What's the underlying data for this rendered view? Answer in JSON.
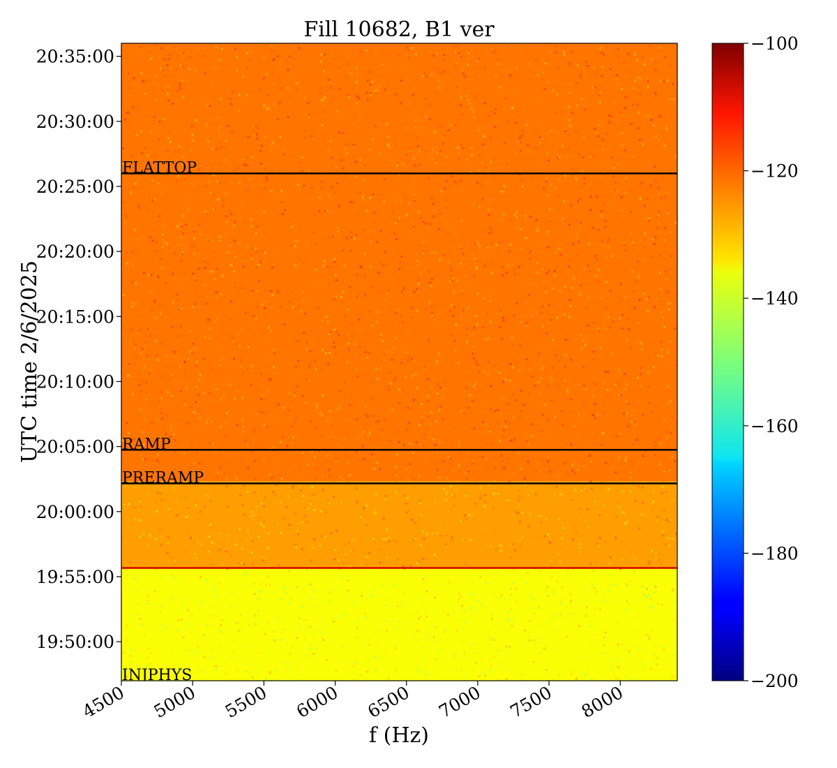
{
  "chart_data": {
    "type": "heatmap",
    "title": "Fill 10682, B1 ver",
    "xlabel": "f (Hz)",
    "ylabel": "UTC time 2/6/2025",
    "xlim": [
      4500,
      8400
    ],
    "x_ticks": [
      4500,
      5000,
      5500,
      6000,
      6500,
      7000,
      7500,
      8000
    ],
    "x_tick_labels": [
      "4500",
      "5000",
      "5500",
      "6000",
      "6500",
      "7000",
      "7500",
      "8000"
    ],
    "y_range": [
      "19:47:00",
      "20:36:00"
    ],
    "y_tick_labels": [
      "19:50:00",
      "19:55:00",
      "20:00:00",
      "20:05:00",
      "20:10:00",
      "20:15:00",
      "20:20:00",
      "20:25:00",
      "20:30:00",
      "20:35:00"
    ],
    "colorbar": {
      "colormap": "jet",
      "range": [
        -200,
        -100
      ],
      "ticks": [
        -100,
        -120,
        -140,
        -160,
        -180,
        -200
      ],
      "tick_labels": [
        "−100",
        "−120",
        "−140",
        "−160",
        "−180",
        "−200"
      ]
    },
    "regions": [
      {
        "from": "19:47:00",
        "to": "19:55:40",
        "level_dB": -138
      },
      {
        "from": "19:55:40",
        "to": "20:02:20",
        "level_dB": -128
      },
      {
        "from": "20:02:20",
        "to": "20:36:00",
        "level_dB": -124
      }
    ],
    "annotations": [
      {
        "label": "INJPHYS",
        "time": "19:47:00"
      },
      {
        "label": "PRERAMP",
        "time": "20:02:10"
      },
      {
        "label": "RAMP",
        "time": "20:04:45"
      },
      {
        "label": "FLATTOP",
        "time": "20:26:00"
      }
    ],
    "phase_lines": [
      {
        "time": "19:55:40",
        "color": "#d40000"
      },
      {
        "time": "20:02:10",
        "color": "#000000"
      },
      {
        "time": "20:04:45",
        "color": "#000000"
      },
      {
        "time": "20:26:00",
        "color": "#000000"
      }
    ]
  }
}
